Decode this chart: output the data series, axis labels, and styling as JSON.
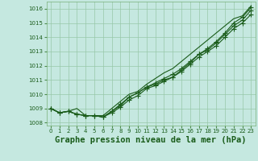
{
  "title": "Graphe pression niveau de la mer (hPa)",
  "background_color": "#c5e8e0",
  "grid_color": "#98c8a8",
  "line_color": "#1a5c1a",
  "x_values": [
    0,
    1,
    2,
    3,
    4,
    5,
    6,
    7,
    8,
    9,
    10,
    11,
    12,
    13,
    14,
    15,
    16,
    17,
    18,
    19,
    20,
    21,
    22,
    23
  ],
  "s1_nomarker": [
    1009.0,
    1008.7,
    1008.8,
    1009.0,
    1008.5,
    1008.5,
    1008.5,
    1009.0,
    1009.5,
    1010.0,
    1010.2,
    1010.7,
    1011.1,
    1011.5,
    1011.8,
    1012.3,
    1012.8,
    1013.3,
    1013.8,
    1014.3,
    1014.8,
    1015.3,
    1015.5,
    1016.2
  ],
  "s2_marker": [
    1009.0,
    1008.7,
    1008.8,
    1008.6,
    1008.5,
    1008.5,
    1008.4,
    1008.8,
    1009.2,
    1009.8,
    1010.1,
    1010.5,
    1010.8,
    1011.1,
    1011.4,
    1011.8,
    1012.3,
    1012.8,
    1013.2,
    1013.7,
    1014.3,
    1015.0,
    1015.4,
    1016.1
  ],
  "s3_marker": [
    1009.0,
    1008.7,
    1008.8,
    1008.6,
    1008.5,
    1008.5,
    1008.4,
    1008.8,
    1009.3,
    1009.8,
    1010.1,
    1010.5,
    1010.7,
    1011.0,
    1011.2,
    1011.7,
    1012.2,
    1012.8,
    1013.1,
    1013.6,
    1014.2,
    1014.8,
    1015.2,
    1015.9
  ],
  "s4_marker": [
    1009.0,
    1008.7,
    1008.8,
    1008.6,
    1008.5,
    1008.5,
    1008.4,
    1008.7,
    1009.1,
    1009.6,
    1009.9,
    1010.4,
    1010.6,
    1010.9,
    1011.2,
    1011.6,
    1012.1,
    1012.6,
    1013.0,
    1013.4,
    1014.0,
    1014.6,
    1015.0,
    1015.6
  ],
  "ylim": [
    1007.8,
    1016.5
  ],
  "yticks": [
    1008,
    1009,
    1010,
    1011,
    1012,
    1013,
    1014,
    1015,
    1016
  ],
  "xlim": [
    -0.5,
    23.5
  ],
  "xticks": [
    0,
    1,
    2,
    3,
    4,
    5,
    6,
    7,
    8,
    9,
    10,
    11,
    12,
    13,
    14,
    15,
    16,
    17,
    18,
    19,
    20,
    21,
    22,
    23
  ],
  "marker": "+",
  "marker_size": 4,
  "line_width": 0.8,
  "title_fontsize": 7.5,
  "tick_fontsize": 5.0
}
